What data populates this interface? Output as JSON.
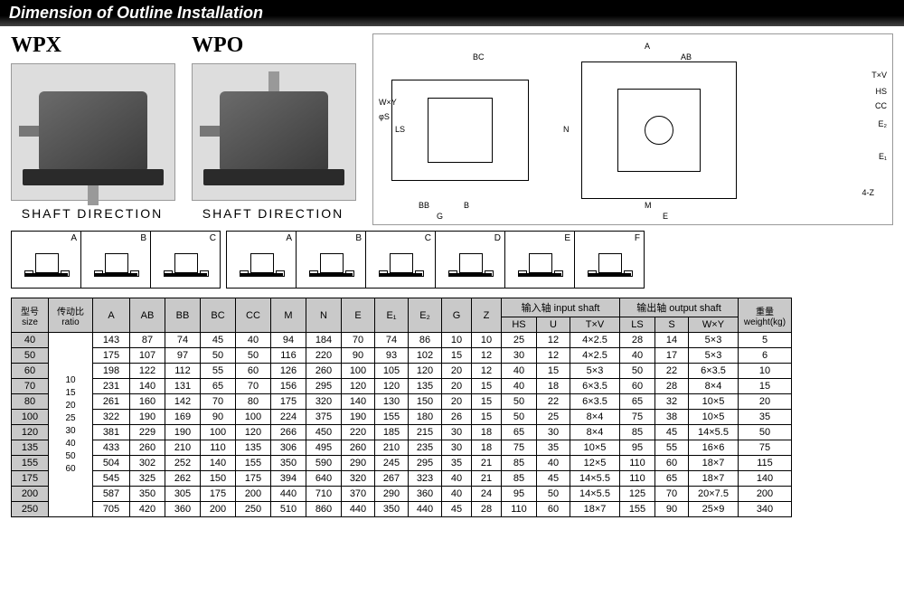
{
  "title": "Dimension of Outline Installation",
  "models": [
    {
      "name": "WPX",
      "shaft_label": "SHAFT  DIRECTION"
    },
    {
      "name": "WPO",
      "shaft_label": "SHAFT  DIRECTION"
    }
  ],
  "eng_drawing": {
    "labels": [
      "A",
      "AB",
      "BC",
      "T×V",
      "HS",
      "CC",
      "N",
      "E₁",
      "E",
      "M",
      "4-Z",
      "G",
      "BB",
      "B",
      "LS",
      "W×Y",
      "φS",
      "E₂"
    ]
  },
  "config_groups": [
    {
      "letters": [
        "A",
        "B",
        "C"
      ]
    },
    {
      "letters": [
        "A",
        "B",
        "C",
        "D",
        "E",
        "F"
      ]
    }
  ],
  "table": {
    "headers": {
      "size": "型号\nsize",
      "ratio": "传动比\nratio",
      "cols": [
        "A",
        "AB",
        "BB",
        "BC",
        "CC",
        "M",
        "N",
        "E",
        "E₁",
        "E₂",
        "G",
        "Z"
      ],
      "input_shaft": "输入轴 input  shaft",
      "input_sub": [
        "HS",
        "U",
        "T×V"
      ],
      "output_shaft": "输出轴 output shaft",
      "output_sub": [
        "LS",
        "S",
        "W×Y"
      ],
      "weight": "重量\nweight(kg)"
    },
    "ratios": [
      "10",
      "15",
      "20",
      "25",
      "30",
      "40",
      "50",
      "60"
    ],
    "rows": [
      {
        "size": "40",
        "A": "143",
        "AB": "87",
        "BB": "74",
        "BC": "45",
        "CC": "40",
        "M": "94",
        "N": "184",
        "E": "70",
        "E1": "74",
        "E2": "86",
        "G": "10",
        "Z": "10",
        "HS": "25",
        "U": "12",
        "TV": "4×2.5",
        "LS": "28",
        "S": "14",
        "WY": "5×3",
        "wt": "5"
      },
      {
        "size": "50",
        "A": "175",
        "AB": "107",
        "BB": "97",
        "BC": "50",
        "CC": "50",
        "M": "116",
        "N": "220",
        "E": "90",
        "E1": "93",
        "E2": "102",
        "G": "15",
        "Z": "12",
        "HS": "30",
        "U": "12",
        "TV": "4×2.5",
        "LS": "40",
        "S": "17",
        "WY": "5×3",
        "wt": "6"
      },
      {
        "size": "60",
        "A": "198",
        "AB": "122",
        "BB": "112",
        "BC": "55",
        "CC": "60",
        "M": "126",
        "N": "260",
        "E": "100",
        "E1": "105",
        "E2": "120",
        "G": "20",
        "Z": "12",
        "HS": "40",
        "U": "15",
        "TV": "5×3",
        "LS": "50",
        "S": "22",
        "WY": "6×3.5",
        "wt": "10"
      },
      {
        "size": "70",
        "A": "231",
        "AB": "140",
        "BB": "131",
        "BC": "65",
        "CC": "70",
        "M": "156",
        "N": "295",
        "E": "120",
        "E1": "120",
        "E2": "135",
        "G": "20",
        "Z": "15",
        "HS": "40",
        "U": "18",
        "TV": "6×3.5",
        "LS": "60",
        "S": "28",
        "WY": "8×4",
        "wt": "15"
      },
      {
        "size": "80",
        "A": "261",
        "AB": "160",
        "BB": "142",
        "BC": "70",
        "CC": "80",
        "M": "175",
        "N": "320",
        "E": "140",
        "E1": "130",
        "E2": "150",
        "G": "20",
        "Z": "15",
        "HS": "50",
        "U": "22",
        "TV": "6×3.5",
        "LS": "65",
        "S": "32",
        "WY": "10×5",
        "wt": "20"
      },
      {
        "size": "100",
        "A": "322",
        "AB": "190",
        "BB": "169",
        "BC": "90",
        "CC": "100",
        "M": "224",
        "N": "375",
        "E": "190",
        "E1": "155",
        "E2": "180",
        "G": "26",
        "Z": "15",
        "HS": "50",
        "U": "25",
        "TV": "8×4",
        "LS": "75",
        "S": "38",
        "WY": "10×5",
        "wt": "35"
      },
      {
        "size": "120",
        "A": "381",
        "AB": "229",
        "BB": "190",
        "BC": "100",
        "CC": "120",
        "M": "266",
        "N": "450",
        "E": "220",
        "E1": "185",
        "E2": "215",
        "G": "30",
        "Z": "18",
        "HS": "65",
        "U": "30",
        "TV": "8×4",
        "LS": "85",
        "S": "45",
        "WY": "14×5.5",
        "wt": "50"
      },
      {
        "size": "135",
        "A": "433",
        "AB": "260",
        "BB": "210",
        "BC": "110",
        "CC": "135",
        "M": "306",
        "N": "495",
        "E": "260",
        "E1": "210",
        "E2": "235",
        "G": "30",
        "Z": "18",
        "HS": "75",
        "U": "35",
        "TV": "10×5",
        "LS": "95",
        "S": "55",
        "WY": "16×6",
        "wt": "75"
      },
      {
        "size": "155",
        "A": "504",
        "AB": "302",
        "BB": "252",
        "BC": "140",
        "CC": "155",
        "M": "350",
        "N": "590",
        "E": "290",
        "E1": "245",
        "E2": "295",
        "G": "35",
        "Z": "21",
        "HS": "85",
        "U": "40",
        "TV": "12×5",
        "LS": "110",
        "S": "60",
        "WY": "18×7",
        "wt": "115"
      },
      {
        "size": "175",
        "A": "545",
        "AB": "325",
        "BB": "262",
        "BC": "150",
        "CC": "175",
        "M": "394",
        "N": "640",
        "E": "320",
        "E1": "267",
        "E2": "323",
        "G": "40",
        "Z": "21",
        "HS": "85",
        "U": "45",
        "TV": "14×5.5",
        "LS": "110",
        "S": "65",
        "WY": "18×7",
        "wt": "140"
      },
      {
        "size": "200",
        "A": "587",
        "AB": "350",
        "BB": "305",
        "BC": "175",
        "CC": "200",
        "M": "440",
        "N": "710",
        "E": "370",
        "E1": "290",
        "E2": "360",
        "G": "40",
        "Z": "24",
        "HS": "95",
        "U": "50",
        "TV": "14×5.5",
        "LS": "125",
        "S": "70",
        "WY": "20×7.5",
        "wt": "200"
      },
      {
        "size": "250",
        "A": "705",
        "AB": "420",
        "BB": "360",
        "BC": "200",
        "CC": "250",
        "M": "510",
        "N": "860",
        "E": "440",
        "E1": "350",
        "E2": "440",
        "G": "45",
        "Z": "28",
        "HS": "110",
        "U": "60",
        "TV": "18×7",
        "LS": "155",
        "S": "90",
        "WY": "25×9",
        "wt": "340"
      }
    ]
  },
  "colors": {
    "header_bg": "#c9c9c9",
    "titlebar": "#000000",
    "title_text": "#ffffff",
    "border": "#000000"
  }
}
